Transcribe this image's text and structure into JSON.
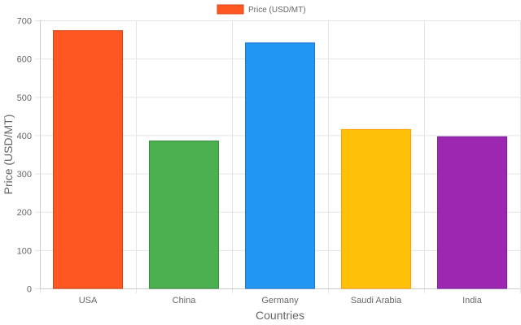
{
  "chart_data": {
    "type": "bar",
    "categories": [
      "USA",
      "China",
      "Germany",
      "Saudi Arabia",
      "India"
    ],
    "series": [
      {
        "name": "Price (USD/MT)",
        "values": [
          673,
          385,
          641,
          415,
          396
        ],
        "colors": [
          "#ff5722",
          "#4caf50",
          "#2196f3",
          "#ffc107",
          "#9c27b0"
        ],
        "border_colors": [
          "#d84315",
          "#388e3c",
          "#1976d2",
          "#ffa000",
          "#7b1fa2"
        ]
      }
    ],
    "legend": {
      "position": "top",
      "label": "Price (USD/MT)",
      "swatch_color": "#ff5722",
      "swatch_border": "#d84315"
    },
    "xlabel": "Countries",
    "ylabel": "Price (USD/MT)",
    "ylim": [
      0,
      700
    ],
    "yticks": [
      0,
      100,
      200,
      300,
      400,
      500,
      600,
      700
    ],
    "grid": true,
    "grid_color": "#e5e5e5"
  }
}
